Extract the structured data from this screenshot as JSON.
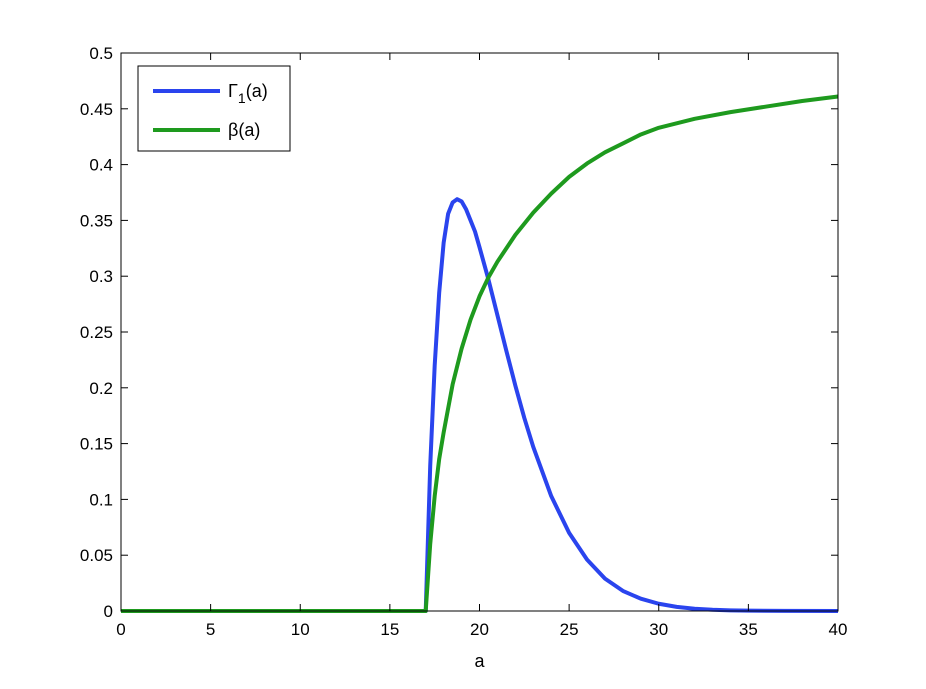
{
  "chart_data": {
    "type": "line",
    "title": "",
    "xlabel": "a",
    "ylabel": "",
    "xlim": [
      0,
      40
    ],
    "ylim": [
      0,
      0.5
    ],
    "xticks": [
      "0",
      "5",
      "10",
      "15",
      "20",
      "25",
      "30",
      "35",
      "40"
    ],
    "yticks": [
      "0",
      "0.05",
      "0.1",
      "0.15",
      "0.2",
      "0.25",
      "0.3",
      "0.35",
      "0.4",
      "0.45",
      "0.5"
    ],
    "grid": false,
    "legend_position": "top-left",
    "series": [
      {
        "name": "Γ1(a)",
        "legend_main": "Γ",
        "legend_sub": "1",
        "legend_tail": "(a)",
        "color": "#2a44ee",
        "x": [
          0,
          17,
          17.25,
          17.5,
          17.75,
          18,
          18.25,
          18.5,
          18.75,
          19,
          19.25,
          19.5,
          19.75,
          20,
          20.5,
          21,
          21.5,
          22,
          22.5,
          23,
          24,
          25,
          26,
          27,
          28,
          29,
          30,
          31,
          32,
          33,
          34,
          35,
          37,
          40
        ],
        "y": [
          0,
          0,
          0.13,
          0.22,
          0.285,
          0.33,
          0.356,
          0.366,
          0.369,
          0.367,
          0.36,
          0.35,
          0.34,
          0.326,
          0.297,
          0.265,
          0.233,
          0.202,
          0.173,
          0.147,
          0.103,
          0.07,
          0.046,
          0.029,
          0.018,
          0.011,
          0.0065,
          0.0037,
          0.002,
          0.0011,
          0.0006,
          0.0003,
          0.0001,
          0
        ]
      },
      {
        "name": "β(a)",
        "color": "#1e9a1e",
        "x": [
          0,
          17,
          17.25,
          17.5,
          17.75,
          18,
          18.5,
          19,
          19.5,
          20,
          20.5,
          21,
          22,
          23,
          24,
          25,
          26,
          27,
          28,
          29,
          30,
          32,
          34,
          36,
          38,
          40
        ],
        "y": [
          0,
          0,
          0.06,
          0.103,
          0.136,
          0.16,
          0.203,
          0.235,
          0.261,
          0.282,
          0.299,
          0.313,
          0.337,
          0.357,
          0.374,
          0.389,
          0.401,
          0.411,
          0.419,
          0.427,
          0.433,
          0.441,
          0.447,
          0.452,
          0.457,
          0.461
        ]
      }
    ]
  }
}
